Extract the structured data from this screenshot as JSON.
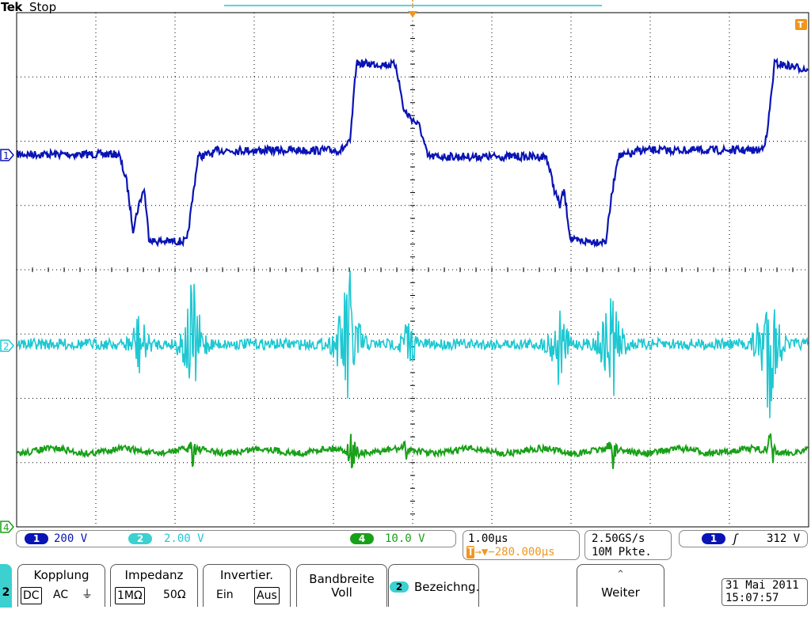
{
  "header": {
    "brand": "Tek",
    "acq_state": "Stop"
  },
  "colors": {
    "ch1": "#0a14b4",
    "ch2": "#1ec8d2",
    "ch4": "#19a019",
    "trigger": "#f0961e",
    "grid": "#000000",
    "ch2_badge": "#3cd0d0"
  },
  "channels": [
    {
      "id": "1",
      "scale": "200 V",
      "color": "#0a14b4"
    },
    {
      "id": "2",
      "scale": "2.00 V",
      "color": "#1ec8d2"
    },
    {
      "id": "4",
      "scale": "10.0 V",
      "color": "#19a019"
    }
  ],
  "ground_markers": [
    "1",
    "2",
    "4"
  ],
  "trigger_marker": "T",
  "timebase": {
    "scale": "1.00µs",
    "position": "→▼−280.000µs",
    "t_icon": "T"
  },
  "acquisition": {
    "rate": "2.50GS/s",
    "record": "10M Pkte."
  },
  "trigger": {
    "source": "1",
    "slope_icon": "rising-edge-icon",
    "slope_glyph": "ʃ",
    "level": "312 V"
  },
  "menu": {
    "selected_channel": "2",
    "buttons": [
      {
        "title": "Kopplung",
        "options": [
          "DC",
          "AC",
          "⏚"
        ],
        "selected": "DC"
      },
      {
        "title": "Impedanz",
        "options": [
          "1MΩ",
          "50Ω"
        ],
        "selected": "1MΩ"
      },
      {
        "title": "Invertier.",
        "options": [
          "Ein",
          "Aus"
        ],
        "selected": "Aus"
      },
      {
        "title_line1": "Bandbreite",
        "title_line2": "Voll"
      },
      {
        "badge": "2",
        "title": "Bezeichng."
      },
      {
        "icon": "more-chevron-icon",
        "glyph": "⌃",
        "title": "Weiter"
      }
    ]
  },
  "datetime": {
    "date": "31 Mai  2011",
    "time": "15:07:57"
  }
}
